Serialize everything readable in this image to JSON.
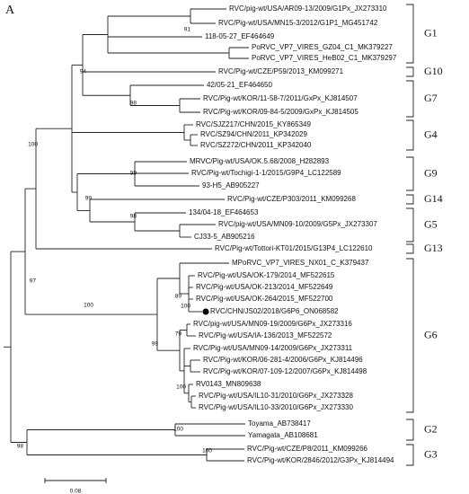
{
  "panel_label": "A",
  "leaves": [
    "RVC/pig-wt/USA/AR09-13/2009/G1Px_JX273310",
    "RVC/Pig-wt/USA/MN15-3/2012/G1P1_MG451742",
    "118-05-27_EF464649",
    "PoRVC_VP7_VIRES_GZ04_C1_MK379227",
    "PoRVC_VP7_VIRES_HeB02_C1_MK379297",
    "RVC/Pig-wt/CZE/P59/2013_KM099271",
    "42/05-21_EF464650",
    "RVC/Pig-wt/KOR/11-58-7/2011/GxPx_KJ814507",
    "RVC/Pig-wt/KOR/09-84-5/2009/GxPx_KJ814505",
    "RVC/SJZ217/CHN/2015_KY865349",
    "RVC/SZ94/CHN/2011_KP342029",
    "RVC/SZ272/CHN/2011_KP342040",
    "MRVC/Pig-wt/USA/OK.5.68/2008_H282893",
    "RVC/Pig-wt/Tochigi-1-1/2015/G9P4_LC122589",
    "93-H5_AB905227",
    "RVC/Pig-wt/CZE/P303/2011_KM099268",
    "134/04-18_EF464653",
    "RVC/pig-wt/USA/MN09-10/2009/G5Px_JX273307",
    "CJ33-5_AB905216",
    "RVC/Pig-wt/Tottori-KT01/2015/G13P4_LC122610",
    "MPoRVC_VP7_VIRES_NX01_C_K379437",
    "RVC/Pig-wt/USA/OK-179/2014_MF522615",
    "RVC/Pig-wt/USA/OK-213/2014_MF522649",
    "RVC/Pig-wt/USA/OK-264/2015_MF522700",
    "RVC/CHN/JS02/2018/G6P6_ON068582",
    "RVC/pig-wt/USA/MN09-19/2009/G6Px_JX273316",
    "RVC/Pig-wt/USA/IA-136/2013_MF522572",
    "RVC/Pig-wt/USA/MN09-14/2009/G6Px_JX273311",
    "RVC/Pig-wt/KOR/06-281-4/2006/G6Px_KJ814496",
    "RVC/Pig-wt/KOR/07-109-12/2007/G6Px_KJ814498",
    "RV0143_MN809638",
    "RVC/Pig-wt/USA/IL10-31/2010/G6Px_JX273328",
    "RVC/Pig-wt/USA/IL10-33/2010/G6Px_JX273330",
    "Toyama_AB738417",
    "Yamagata_AB108681",
    "RVC/Pig-wt/CZE/P8/2011_KM099266",
    "RVC/Pig-wt/KOR/2846/2012/G3Px_KJ814494"
  ],
  "groups": [
    "G1",
    "G10",
    "G7",
    "G4",
    "G9",
    "G14",
    "G5",
    "G13",
    "G6",
    "G2",
    "G3"
  ],
  "bootstrap": [
    91,
    94,
    98,
    100,
    99,
    99,
    98,
    97,
    100,
    89,
    100,
    79,
    99,
    100,
    98,
    100,
    100
  ],
  "scale_bar": 0.08
}
